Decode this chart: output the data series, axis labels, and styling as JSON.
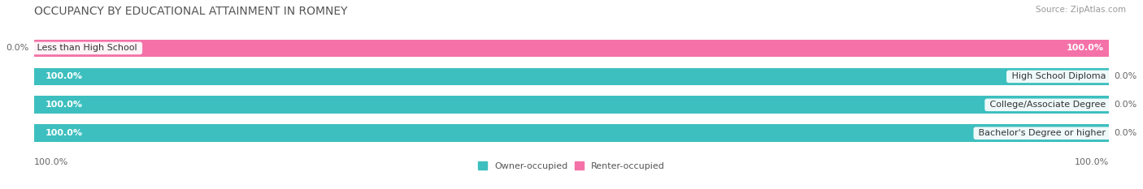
{
  "title": "OCCUPANCY BY EDUCATIONAL ATTAINMENT IN ROMNEY",
  "source": "Source: ZipAtlas.com",
  "categories": [
    "Less than High School",
    "High School Diploma",
    "College/Associate Degree",
    "Bachelor's Degree or higher"
  ],
  "owner_values": [
    0.0,
    100.0,
    100.0,
    100.0
  ],
  "renter_values": [
    100.0,
    0.0,
    0.0,
    0.0
  ],
  "owner_color": "#3dbfbf",
  "renter_color": "#f472a8",
  "bg_bar_color": "#e8e8e8",
  "bg_color": "#ffffff",
  "row_bg_colors": [
    "#f2f2f2",
    "#ffffff",
    "#f2f2f2",
    "#ffffff"
  ],
  "title_fontsize": 10,
  "label_fontsize": 8,
  "value_fontsize": 8,
  "bar_height": 0.62,
  "total_width": 100.0,
  "legend_label_owner": "Owner-occupied",
  "legend_label_renter": "Renter-occupied"
}
